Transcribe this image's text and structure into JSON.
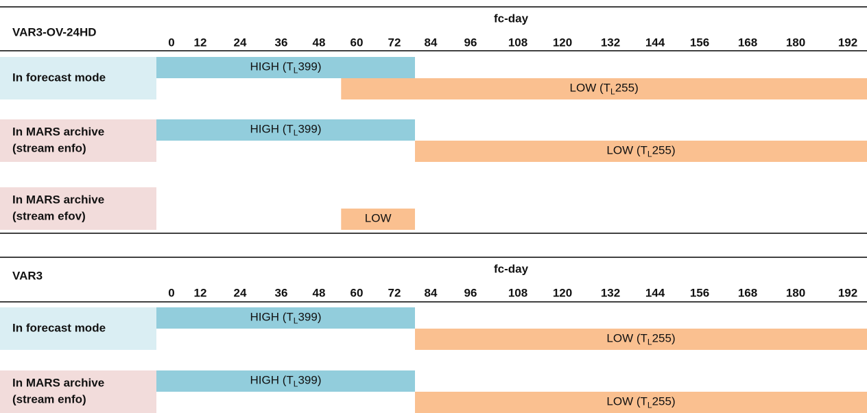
{
  "tables": [
    {
      "title": "VAR3-OV-24HD",
      "header": "fc-day",
      "hours": [
        0,
        12,
        24,
        36,
        48,
        60,
        72,
        84,
        96,
        108,
        120,
        132,
        144,
        156,
        168,
        180,
        192
      ],
      "rows": [
        {
          "label": [
            "In forecast mode"
          ],
          "bars": [
            {
              "pre": "HIGH (T",
              "sub": "L",
              "post": "399)"
            },
            {
              "pre": "LOW (T",
              "sub": "L",
              "post": "255)"
            }
          ]
        },
        {
          "label": [
            "In MARS archive",
            "(stream enfo)"
          ],
          "bars": [
            {
              "pre": "HIGH (T",
              "sub": "L",
              "post": "399)"
            },
            {
              "pre": "LOW (T",
              "sub": "L",
              "post": "255)"
            }
          ]
        },
        {
          "label": [
            "In MARS archive",
            "(stream efov)"
          ],
          "bars": [
            {
              "pre": "LOW"
            }
          ]
        }
      ]
    },
    {
      "title": "VAR3",
      "header": "fc-day",
      "hours": [
        0,
        12,
        24,
        36,
        48,
        60,
        72,
        84,
        96,
        108,
        120,
        132,
        144,
        156,
        168,
        180,
        192
      ],
      "rows": [
        {
          "label": [
            "In forecast mode"
          ],
          "bars": [
            {
              "pre": "HIGH (T",
              "sub": "L",
              "post": "399)"
            },
            {
              "pre": "LOW (T",
              "sub": "L",
              "post": "255)"
            }
          ]
        },
        {
          "label": [
            "In MARS archive",
            "(stream enfo)"
          ],
          "bars": [
            {
              "pre": "HIGH (T",
              "sub": "L",
              "post": "399)"
            },
            {
              "pre": "LOW (T",
              "sub": "L",
              "post": "255)"
            }
          ]
        }
      ]
    }
  ]
}
